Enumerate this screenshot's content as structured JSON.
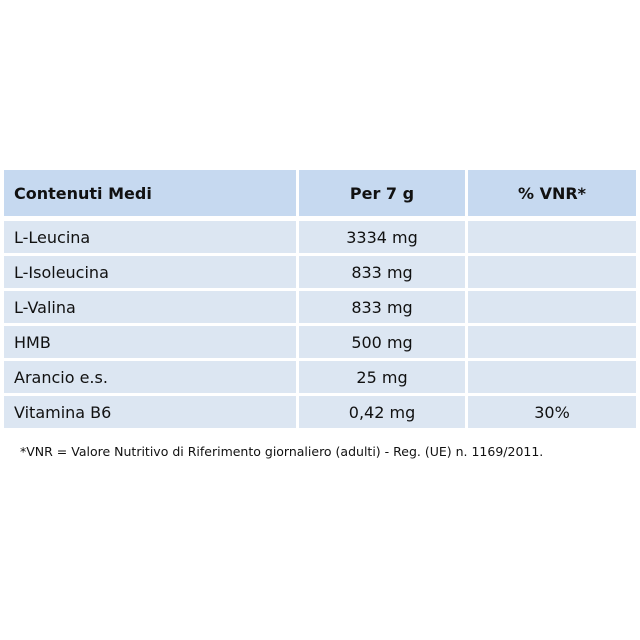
{
  "table": {
    "header": [
      "Contenuti Medi",
      "Per 7 g",
      "% VNR*"
    ],
    "rows": [
      [
        "L-Leucina",
        "3334 mg"
      ],
      [
        "L-Isoleucina",
        "833 mg"
      ],
      [
        "L-Valina",
        "833 mg"
      ],
      [
        "HMB",
        "500 mg"
      ],
      [
        "Arancio e.s.",
        "25 mg"
      ],
      [
        "Vitamina B6",
        "0,42 mg",
        "30%"
      ]
    ]
  },
  "footnote": "*VNR = Valore Nutritivo di Riferimento giornaliero (adulti) - Reg. (UE) n. 1169/2011."
}
